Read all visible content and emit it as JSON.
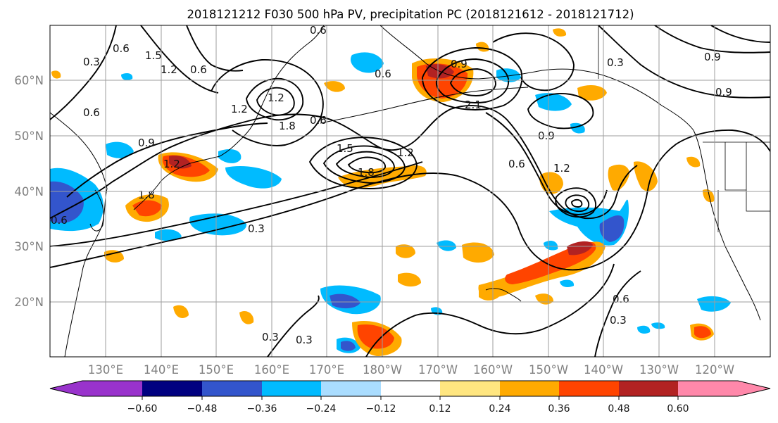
{
  "title": "2018121212 F030 500 hPa PV, precipitation PC (2018121612 - 2018121712)",
  "map": {
    "lat_ticks": [
      "60°N",
      "50°N",
      "40°N",
      "30°N",
      "20°N"
    ],
    "lon_ticks": [
      "130°E",
      "140°E",
      "150°E",
      "160°E",
      "170°E",
      "180°W",
      "170°W",
      "160°W",
      "150°W",
      "140°W",
      "130°W",
      "120°W"
    ],
    "contour_color": "#000000",
    "grid_color": "#9e9e9e",
    "contour_labels": [
      "0.6",
      "0.3",
      "0.6",
      "1.5",
      "1.2",
      "0.6",
      "0.9",
      "1.2",
      "1.8",
      "0.6",
      "1.2",
      "1.5",
      "1.8",
      "0.3",
      "0.3",
      "0.3",
      "0.6",
      "0.9",
      "1.2",
      "0.6",
      "0.9",
      "0.6",
      "0.3",
      "0.9",
      "1.2",
      "2.1",
      "1.8",
      "0.9",
      "1.2",
      "0.6",
      "0.6",
      "0.3"
    ]
  },
  "colorbar": {
    "ticks": [
      "−0.60",
      "−0.48",
      "−0.36",
      "−0.24",
      "−0.12",
      "0.12",
      "0.24",
      "0.36",
      "0.48",
      "0.60"
    ],
    "colors": [
      "#9933cc",
      "#000080",
      "#3355cc",
      "#00bbff",
      "#aaddff",
      "#ffffff",
      "#ffe680",
      "#ffaa00",
      "#ff4400",
      "#b22222",
      "#ff88aa"
    ]
  }
}
